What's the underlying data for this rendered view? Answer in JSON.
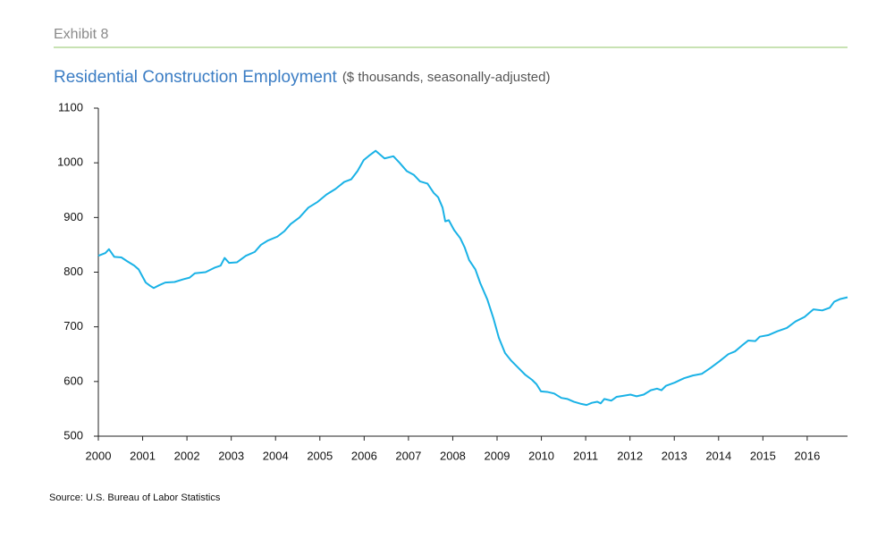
{
  "exhibit": "Exhibit 8",
  "chart_data": {
    "type": "line",
    "title": "Residential Construction Employment",
    "subtitle": "($ thousands, seasonally-adjusted)",
    "source": "Source: U.S. Bureau of Labor Statistics",
    "x": [
      2000.0,
      2000.16,
      2000.24,
      2000.36,
      2000.52,
      2000.65,
      2000.81,
      2000.91,
      2001.01,
      2001.07,
      2001.17,
      2001.25,
      2001.37,
      2001.51,
      2001.72,
      2001.92,
      2002.06,
      2002.18,
      2002.42,
      2002.62,
      2002.76,
      2002.85,
      2002.95,
      2003.13,
      2003.33,
      2003.53,
      2003.67,
      2003.83,
      2004.04,
      2004.2,
      2004.34,
      2004.54,
      2004.74,
      2004.94,
      2005.15,
      2005.35,
      2005.55,
      2005.71,
      2005.85,
      2005.99,
      2006.11,
      2006.26,
      2006.36,
      2006.46,
      2006.66,
      2006.8,
      2006.96,
      2007.12,
      2007.26,
      2007.43,
      2007.57,
      2007.67,
      2007.77,
      2007.83,
      2007.91,
      2008.03,
      2008.17,
      2008.27,
      2008.37,
      2008.51,
      2008.62,
      2008.78,
      2008.92,
      2009.04,
      2009.18,
      2009.32,
      2009.48,
      2009.64,
      2009.79,
      2009.89,
      2009.99,
      2010.13,
      2010.29,
      2010.45,
      2010.59,
      2010.73,
      2010.9,
      2011.02,
      2011.14,
      2011.26,
      2011.34,
      2011.42,
      2011.58,
      2011.7,
      2011.86,
      2012.01,
      2012.15,
      2012.31,
      2012.47,
      2012.61,
      2012.71,
      2012.81,
      2013.01,
      2013.22,
      2013.42,
      2013.62,
      2013.82,
      2014.02,
      2014.22,
      2014.37,
      2014.53,
      2014.67,
      2014.83,
      2014.93,
      2015.13,
      2015.33,
      2015.54,
      2015.74,
      2015.94,
      2016.14,
      2016.34,
      2016.51,
      2016.61,
      2016.75,
      2016.91
    ],
    "series": [
      {
        "color": "#1ab2e6",
        "values": [
          830,
          835,
          842,
          828,
          827,
          820,
          812,
          805,
          790,
          781,
          775,
          771,
          776,
          781,
          782,
          787,
          790,
          798,
          800,
          808,
          812,
          826,
          817,
          818,
          830,
          837,
          850,
          858,
          865,
          875,
          888,
          900,
          918,
          928,
          942,
          952,
          965,
          970,
          985,
          1005,
          1013,
          1022,
          1015,
          1008,
          1012,
          1000,
          985,
          978,
          966,
          962,
          945,
          937,
          918,
          893,
          895,
          877,
          862,
          845,
          822,
          805,
          780,
          750,
          715,
          680,
          652,
          638,
          625,
          612,
          603,
          595,
          582,
          581,
          578,
          570,
          568,
          563,
          559,
          557,
          561,
          563,
          560,
          568,
          565,
          572,
          574,
          576,
          573,
          576,
          584,
          587,
          584,
          592,
          598,
          606,
          611,
          614,
          625,
          637,
          650,
          655,
          666,
          675,
          674,
          682,
          685,
          692,
          698,
          710,
          718,
          732,
          730,
          735,
          746,
          751,
          754
        ]
      }
    ],
    "xlim": [
      2000,
      2016.91
    ],
    "xticks": [
      2000,
      2001,
      2002,
      2003,
      2004,
      2005,
      2006,
      2007,
      2008,
      2009,
      2010,
      2011,
      2012,
      2013,
      2014,
      2015,
      2016
    ],
    "ylim": [
      500,
      1100
    ],
    "yticks": [
      500,
      600,
      700,
      800,
      900,
      1000,
      1100
    ]
  }
}
